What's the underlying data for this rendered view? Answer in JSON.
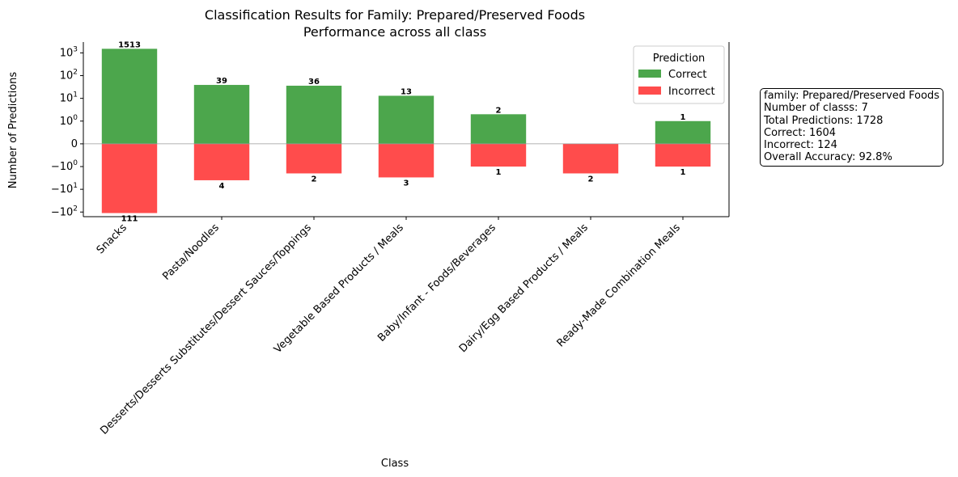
{
  "chart_data": {
    "type": "bar",
    "title": "Classification Results for Family: Prepared/Preserved Foods",
    "subtitle": "Performance across all class",
    "xlabel": "Class",
    "ylabel": "Number of Predictions",
    "yscale": "symlog",
    "ylim": [
      -160,
      3000
    ],
    "y_ticks": [
      {
        "value": 1000,
        "base": "10",
        "exp": "3"
      },
      {
        "value": 100,
        "base": "10",
        "exp": "2"
      },
      {
        "value": 10,
        "base": "10",
        "exp": "1"
      },
      {
        "value": 1,
        "base": "10",
        "exp": "0"
      },
      {
        "value": 0,
        "label": "0"
      },
      {
        "value": -1,
        "base": "−10",
        "exp": "0"
      },
      {
        "value": -10,
        "base": "−10",
        "exp": "1"
      },
      {
        "value": -100,
        "base": "−10",
        "exp": "2"
      }
    ],
    "categories": [
      "Snacks",
      "Pasta/Noodles",
      "Desserts/Desserts Substitutes/Dessert Sauces/Toppings",
      "Vegetable Based Products / Meals",
      "Baby/Infant - Foods/Beverages",
      "Dairy/Egg Based Products / Meals",
      "Ready-Made Combination Meals"
    ],
    "series": [
      {
        "name": "Correct",
        "values": [
          1513,
          39,
          36,
          13,
          2,
          0,
          1
        ],
        "color": "#4ca64c"
      },
      {
        "name": "Incorrect",
        "values": [
          111,
          4,
          2,
          3,
          1,
          2,
          1
        ],
        "color": "#ff4c4c"
      }
    ],
    "legend_title": "Prediction",
    "legend_position": "top-right",
    "grid": false,
    "zero_line_color": "#999999"
  },
  "stats_box": {
    "family": "family: Prepared/Preserved Foods",
    "num_class": "Number of classs: 7",
    "total": "Total Predictions: 1728",
    "correct": "Correct: 1604",
    "incorrect": "Incorrect: 124",
    "accuracy": "Overall Accuracy: 92.8%"
  }
}
